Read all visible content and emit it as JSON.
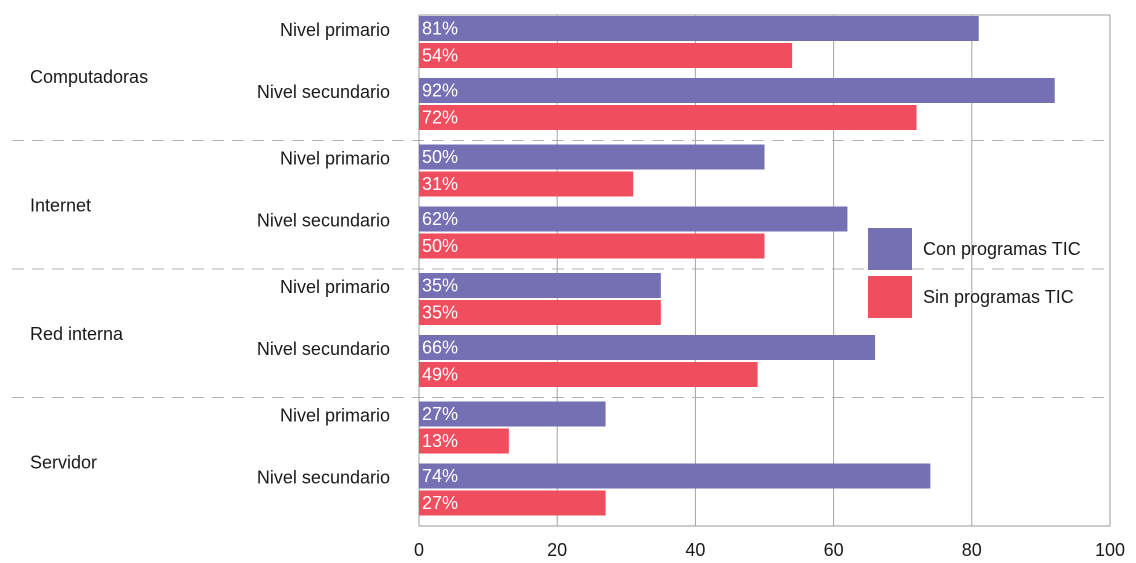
{
  "chart_data": {
    "type": "bar",
    "orientation": "horizontal",
    "xlim": [
      0,
      100
    ],
    "x_ticks": [
      "0",
      "20",
      "40",
      "60",
      "80",
      "100"
    ],
    "grid": "vertical",
    "legend_position": "right",
    "groups": [
      {
        "name": "Computadoras",
        "subgroups": [
          {
            "label": "Nivel primario",
            "values": [
              81,
              54
            ],
            "value_labels": [
              "81%",
              "54%"
            ]
          },
          {
            "label": "Nivel secundario",
            "values": [
              92,
              72
            ],
            "value_labels": [
              "92%",
              "72%"
            ]
          }
        ]
      },
      {
        "name": "Internet",
        "subgroups": [
          {
            "label": "Nivel primario",
            "values": [
              50,
              31
            ],
            "value_labels": [
              "50%",
              "31%"
            ]
          },
          {
            "label": "Nivel secundario",
            "values": [
              62,
              50
            ],
            "value_labels": [
              "62%",
              "50%"
            ]
          }
        ]
      },
      {
        "name": "Red interna",
        "subgroups": [
          {
            "label": "Nivel primario",
            "values": [
              35,
              35
            ],
            "value_labels": [
              "35%",
              "35%"
            ]
          },
          {
            "label": "Nivel secundario",
            "values": [
              66,
              49
            ],
            "value_labels": [
              "66%",
              "49%"
            ]
          }
        ]
      },
      {
        "name": "Servidor",
        "subgroups": [
          {
            "label": "Nivel primario",
            "values": [
              27,
              13
            ],
            "value_labels": [
              "27%",
              "13%"
            ]
          },
          {
            "label": "Nivel secundario",
            "values": [
              74,
              27
            ],
            "value_labels": [
              "74%",
              "27%"
            ]
          }
        ]
      }
    ],
    "series": [
      {
        "name": "Con programas TIC",
        "color": "#7570b3"
      },
      {
        "name": "Sin programas TIC",
        "color": "#f04e5e"
      }
    ]
  }
}
